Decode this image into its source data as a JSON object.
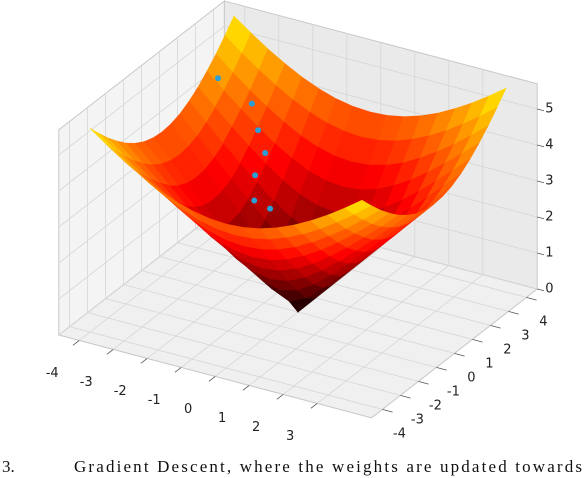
{
  "chart_data": {
    "type": "surface3d",
    "caption_label": "3.",
    "caption": "Gradient Descent, where the weights are updated towards",
    "colormap": "hot",
    "xlim": [
      -4.6,
      4.6
    ],
    "ylim": [
      -4.6,
      4.6
    ],
    "zlim": [
      0,
      5.7
    ],
    "xticks": [
      -4,
      -3,
      -2,
      -1,
      0,
      1,
      2,
      3
    ],
    "yticks": [
      -4,
      -3,
      -2,
      -1,
      0,
      1,
      2,
      3,
      4
    ],
    "zticks": [
      0,
      1,
      2,
      3,
      4,
      5
    ],
    "grid": true,
    "surface": {
      "x": [
        -4,
        -3.5,
        -3,
        -2.5,
        -2,
        -1.5,
        -1,
        -0.5,
        0,
        0.5,
        1,
        1.5,
        2,
        2.5,
        3,
        3.5,
        4
      ],
      "y": [
        -4,
        -3.5,
        -3,
        -2.5,
        -2,
        -1.5,
        -1,
        -0.5,
        0,
        0.5,
        1,
        1.5,
        2,
        2.5,
        3,
        3.5,
        4
      ],
      "z": [
        [
          5.66,
          5.32,
          5,
          4.72,
          4.47,
          4.27,
          4.12,
          4.03,
          4,
          4.03,
          4.12,
          4.27,
          4.47,
          4.72,
          5,
          5.32,
          5.66
        ],
        [
          5.32,
          4.95,
          4.61,
          4.3,
          4.03,
          3.81,
          3.64,
          3.54,
          3.5,
          3.54,
          3.64,
          3.81,
          4.03,
          4.3,
          4.61,
          4.95,
          5.32
        ],
        [
          5,
          4.61,
          4.24,
          3.91,
          3.61,
          3.35,
          3.16,
          3.04,
          3,
          3.04,
          3.16,
          3.35,
          3.61,
          3.91,
          4.24,
          4.61,
          5
        ],
        [
          4.72,
          4.3,
          3.91,
          3.54,
          3.2,
          2.92,
          2.69,
          2.55,
          2.5,
          2.55,
          2.69,
          2.92,
          3.2,
          3.54,
          3.91,
          4.3,
          4.72
        ],
        [
          4.47,
          4.03,
          3.61,
          3.2,
          2.83,
          2.5,
          2.24,
          2.06,
          2,
          2.06,
          2.24,
          2.5,
          2.83,
          3.2,
          3.61,
          4.03,
          4.47
        ],
        [
          4.27,
          3.81,
          3.35,
          2.92,
          2.5,
          2.12,
          1.8,
          1.58,
          1.5,
          1.58,
          1.8,
          2.12,
          2.5,
          2.92,
          3.35,
          3.81,
          4.27
        ],
        [
          4.12,
          3.64,
          3.16,
          2.69,
          2.24,
          1.8,
          1.41,
          1.12,
          1,
          1.12,
          1.41,
          1.8,
          2.24,
          2.69,
          3.16,
          3.64,
          4.12
        ],
        [
          4.03,
          3.54,
          3.04,
          2.55,
          2.06,
          1.58,
          1.12,
          0.71,
          0.5,
          0.71,
          1.12,
          1.58,
          2.06,
          2.55,
          3.04,
          3.54,
          4.03
        ],
        [
          4,
          3.5,
          3,
          2.5,
          2,
          1.5,
          1,
          0.5,
          0,
          0.5,
          1,
          1.5,
          2,
          2.5,
          3,
          3.5,
          4
        ],
        [
          4.03,
          3.54,
          3.04,
          2.55,
          2.06,
          1.58,
          1.12,
          0.71,
          0.5,
          0.71,
          1.12,
          1.58,
          2.06,
          2.55,
          3.04,
          3.54,
          4.03
        ],
        [
          4.12,
          3.64,
          3.16,
          2.69,
          2.24,
          1.8,
          1.41,
          1.12,
          1,
          1.12,
          1.41,
          1.8,
          2.24,
          2.69,
          3.16,
          3.64,
          4.12
        ],
        [
          4.27,
          3.81,
          3.35,
          2.92,
          2.5,
          2.12,
          1.8,
          1.58,
          1.5,
          1.58,
          1.8,
          2.12,
          2.5,
          2.92,
          3.35,
          3.81,
          4.27
        ],
        [
          4.47,
          4.03,
          3.61,
          3.2,
          2.83,
          2.5,
          2.24,
          2.06,
          2,
          2.06,
          2.24,
          2.5,
          2.83,
          3.2,
          3.61,
          4.03,
          4.47
        ],
        [
          4.72,
          4.3,
          3.91,
          3.54,
          3.2,
          2.92,
          2.69,
          2.55,
          2.5,
          2.55,
          2.69,
          2.92,
          3.2,
          3.54,
          3.91,
          4.3,
          4.72
        ],
        [
          5,
          4.61,
          4.24,
          3.91,
          3.61,
          3.35,
          3.16,
          3.04,
          3,
          3.04,
          3.16,
          3.35,
          3.61,
          3.91,
          4.24,
          4.61,
          5
        ],
        [
          5.32,
          4.95,
          4.61,
          4.3,
          4.03,
          3.81,
          3.64,
          3.54,
          3.5,
          3.54,
          3.64,
          3.81,
          4.03,
          4.3,
          4.61,
          4.95,
          5.32
        ],
        [
          5.66,
          5.32,
          5,
          4.72,
          4.47,
          4.27,
          4.12,
          4.03,
          4,
          4.03,
          4.12,
          4.27,
          4.47,
          4.72,
          5,
          5.32,
          5.66
        ]
      ]
    },
    "points": {
      "color": "#2a9fd6",
      "x": [
        -3.73,
        -2.84,
        -2.47,
        -2.12,
        -2.11,
        -1.88,
        -1.51
      ],
      "y": [
        2.6,
        2.8,
        2.45,
        2.18,
        1.6,
        1.12,
        1.3
      ],
      "z": [
        4.55,
        3.99,
        3.48,
        3.04,
        2.65,
        2.19,
        1.99
      ]
    }
  }
}
